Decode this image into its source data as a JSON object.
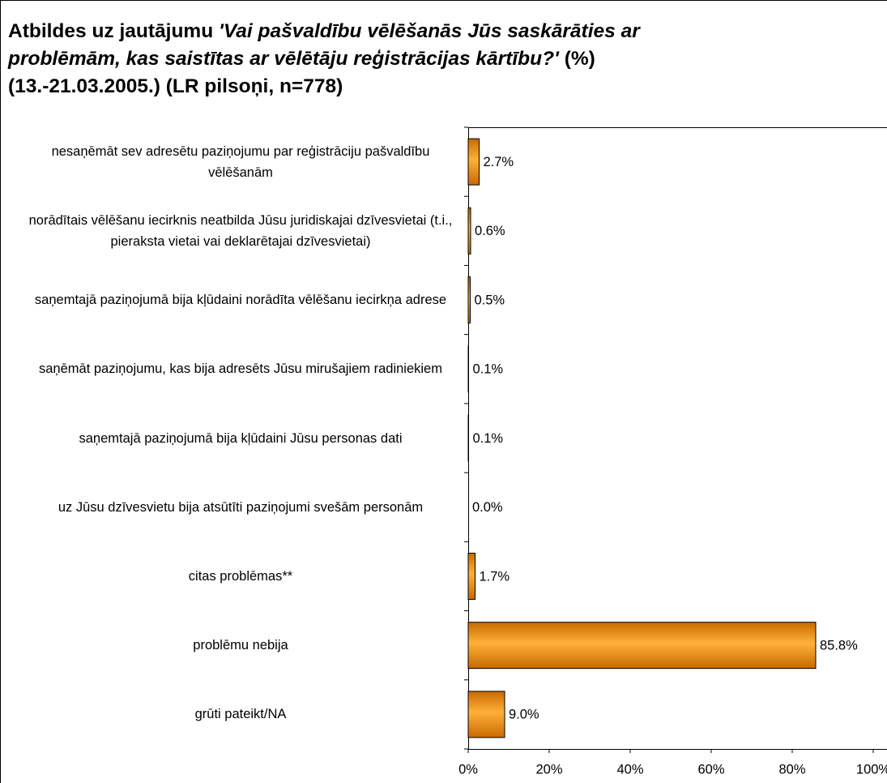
{
  "chart_data": {
    "type": "bar",
    "title": [
      "Atbildes uz jautājumu ",
      "'Vai pašvaldību vēlēšanās Jūs saskārāties ar problēmām, kas saistītas ar vēlētāju reģistrācijas kārtību?'",
      " (%) (13.-21.03.2005.) (LR pilsoņi, n=778)"
    ],
    "categories": [
      "nesaņēmāt sev adresētu paziņojumu par reģistrāciju pašvaldību vēlēšanām",
      "norādītais vēlēšanu iecirknis neatbilda Jūsu juridiskajai dzīvesvietai (t.i., pieraksta vietai vai deklarētajai dzīvesvietai)",
      "saņemtajā paziņojumā bija kļūdaini norādīta vēlēšanu iecirkņa adrese",
      "saņēmāt paziņojumu, kas bija adresēts Jūsu mirušajiem radiniekiem",
      "saņemtajā paziņojumā bija kļūdaini Jūsu personas dati",
      "uz Jūsu dzīvesvietu bija atsūtīti paziņojumi svešām personām",
      "citas problēmas**",
      "problēmu nebija",
      "grūti pateikt/NA"
    ],
    "values": [
      2.7,
      0.6,
      0.5,
      0.1,
      0.1,
      0.0,
      1.7,
      85.8,
      9.0
    ],
    "value_labels": [
      "2.7%",
      "0.6%",
      "0.5%",
      "0.1%",
      "0.1%",
      "0.0%",
      "1.7%",
      "85.8%",
      "9.0%"
    ],
    "color": "#f7931e",
    "xlim": [
      0,
      100
    ],
    "xticks": [
      {
        "value": 0,
        "label": "0%"
      },
      {
        "value": 20,
        "label": "20%"
      },
      {
        "value": 40,
        "label": "40%"
      },
      {
        "value": 60,
        "label": "60%"
      },
      {
        "value": 80,
        "label": "80%"
      },
      {
        "value": 100,
        "label": "100%"
      }
    ]
  }
}
